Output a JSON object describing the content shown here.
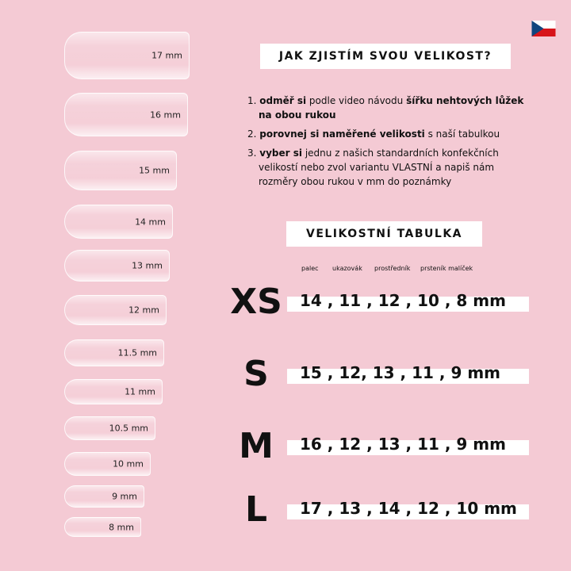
{
  "flag": "czech-flag",
  "nails": [
    "17 mm",
    "16 mm",
    "15 mm",
    "14 mm",
    "13 mm",
    "12 mm",
    "11.5 mm",
    "11 mm",
    "10.5 mm",
    "10 mm",
    "9 mm",
    "8 mm"
  ],
  "howto": {
    "title": "JAK ZJISTÍM SVOU VELIKOST?",
    "steps": [
      {
        "num": "1.",
        "b1": "odměř si",
        "t1": " podle video návodu ",
        "b2": "šířku nehtových lůžek na obou rukou",
        "t2": ""
      },
      {
        "num": "2.",
        "b1": "porovnej si naměřené velikosti",
        "t1": " s naší tabulkou",
        "b2": "",
        "t2": ""
      },
      {
        "num": "3.",
        "b1": "vyber si",
        "t1": " jednu z našich standardních konfekčních velikostí nebo zvol variantu VLASTNÍ a napiš nám rozměry obou rukou v mm do poznámky",
        "b2": "",
        "t2": ""
      }
    ]
  },
  "table": {
    "title": "VELIKOSTNÍ TABULKA",
    "columns": [
      "palec",
      "ukazovák",
      "prostředník",
      "prsteník malíček"
    ],
    "rows": [
      {
        "size": "XS",
        "values": "14 , 11 , 12 , 10 , 8 mm"
      },
      {
        "size": "S",
        "values": "15 , 12, 13 , 11 , 9 mm"
      },
      {
        "size": "M",
        "values": "16 , 12 , 13 , 11 , 9 mm"
      },
      {
        "size": "L",
        "values": "17 , 13 , 14 , 12 , 10 mm"
      }
    ]
  }
}
